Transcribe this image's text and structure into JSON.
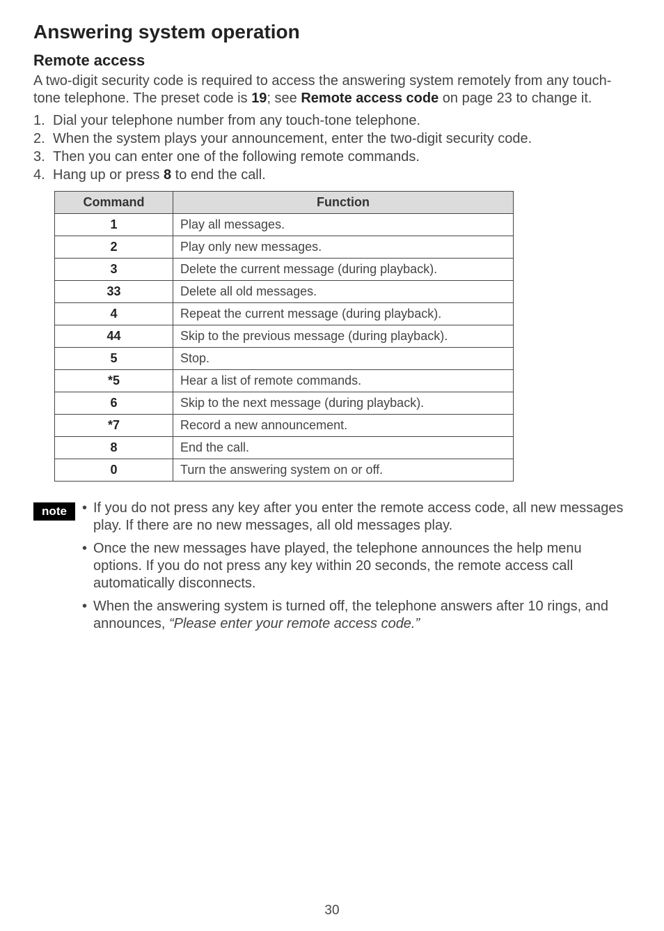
{
  "title": "Answering system operation",
  "section": "Remote access",
  "intro_parts": {
    "p1": "A two-digit security code is required to access the answering system remotely from any touch-tone telephone. The preset code is ",
    "code": "19",
    "p2": "; see ",
    "ref": "Remote access code",
    "p3": " on page 23 to change it."
  },
  "steps": [
    {
      "n": "1.",
      "text": "Dial your telephone number from any touch-tone telephone."
    },
    {
      "n": "2.",
      "text_pre": "When the system plays your announcement, enter the two-digit",
      "text_post": " security code."
    },
    {
      "n": "3.",
      "text": "Then you can enter one of the following remote commands."
    },
    {
      "n": "4.",
      "text_pre": "Hang up or press ",
      "bold": "8",
      "text_post": " to end the call."
    }
  ],
  "table": {
    "headers": {
      "command": "Command",
      "function": "Function"
    },
    "rows": [
      {
        "cmd": "1",
        "fn": "Play all messages."
      },
      {
        "cmd": "2",
        "fn": "Play only new messages."
      },
      {
        "cmd": "3",
        "fn": "Delete the current message (during playback)."
      },
      {
        "cmd": "33",
        "fn": "Delete all old messages."
      },
      {
        "cmd": "4",
        "fn": "Repeat the current message (during playback)."
      },
      {
        "cmd": "44",
        "fn": "Skip to the previous message (during playback)."
      },
      {
        "cmd": "5",
        "fn": "Stop."
      },
      {
        "cmd": "*5",
        "fn": "Hear a list of remote commands."
      },
      {
        "cmd": "6",
        "fn": "Skip to the next message (during playback)."
      },
      {
        "cmd": "*7",
        "fn": "Record a new announcement."
      },
      {
        "cmd": "8",
        "fn": "End the call."
      },
      {
        "cmd": "0",
        "fn": "Turn the answering system on or off."
      }
    ]
  },
  "note_label": "note",
  "notes": [
    {
      "text": "If you do not press any key after you enter the remote access code, all new messages play. If there are no new messages, all old messages play."
    },
    {
      "text": "Once the new messages have played, the telephone announces the help menu options. If you do not press any key within 20 seconds, the remote access call automatically disconnects."
    },
    {
      "text_pre": "When the answering system is turned off, the telephone answers after 10 rings, and announces, ",
      "italic": "“Please enter your remote access code.”"
    }
  ],
  "page_number": "30",
  "colors": {
    "text": "#444444",
    "heading": "#222222",
    "table_header_bg": "#dcdcdc",
    "note_bg": "#000000",
    "note_fg": "#ffffff",
    "page_bg": "#ffffff",
    "border": "#444444"
  }
}
